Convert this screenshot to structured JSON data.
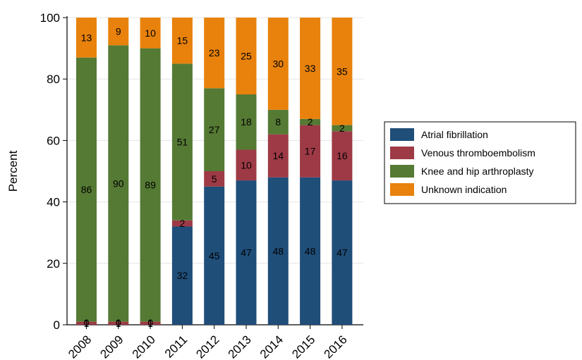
{
  "chart_data": {
    "type": "bar",
    "stacked": true,
    "title": "",
    "xlabel": "",
    "ylabel": "Percent",
    "ylim": [
      0,
      100
    ],
    "yticks": [
      0,
      20,
      40,
      60,
      80,
      100
    ],
    "grid": true,
    "legend_position": "right",
    "categories": [
      "2008",
      "2009",
      "2010",
      "2011",
      "2012",
      "2013",
      "2014",
      "2015",
      "2016"
    ],
    "series": [
      {
        "name": "Atrial fibrillation",
        "color": "#1f4e79",
        "values": [
          0,
          0,
          0,
          32,
          45,
          47,
          48,
          48,
          47
        ],
        "labels": [
          "",
          "",
          "",
          "32",
          "45",
          "47",
          "48",
          "48",
          "47"
        ]
      },
      {
        "name": "Venous thromboembolism",
        "color": "#9e3a46",
        "values": [
          1,
          1,
          1,
          2,
          5,
          10,
          14,
          17,
          16
        ],
        "labels": [
          "1",
          "1",
          "1",
          "2",
          "5",
          "10",
          "14",
          "17",
          "16"
        ]
      },
      {
        "name": "Knee and hip arthroplasty",
        "color": "#557a34",
        "values": [
          86,
          90,
          89,
          51,
          27,
          18,
          8,
          2,
          2
        ],
        "labels": [
          "86",
          "90",
          "89",
          "51",
          "27",
          "18",
          "8",
          "2",
          "2"
        ]
      },
      {
        "name": "Unknown indication",
        "color": "#e8820c",
        "values": [
          13,
          9,
          10,
          15,
          23,
          25,
          30,
          33,
          35
        ],
        "labels": [
          "13",
          "9",
          "10",
          "15",
          "23",
          "25",
          "30",
          "33",
          "35"
        ]
      }
    ],
    "extra_labels": [
      "0",
      "0",
      "0"
    ]
  }
}
